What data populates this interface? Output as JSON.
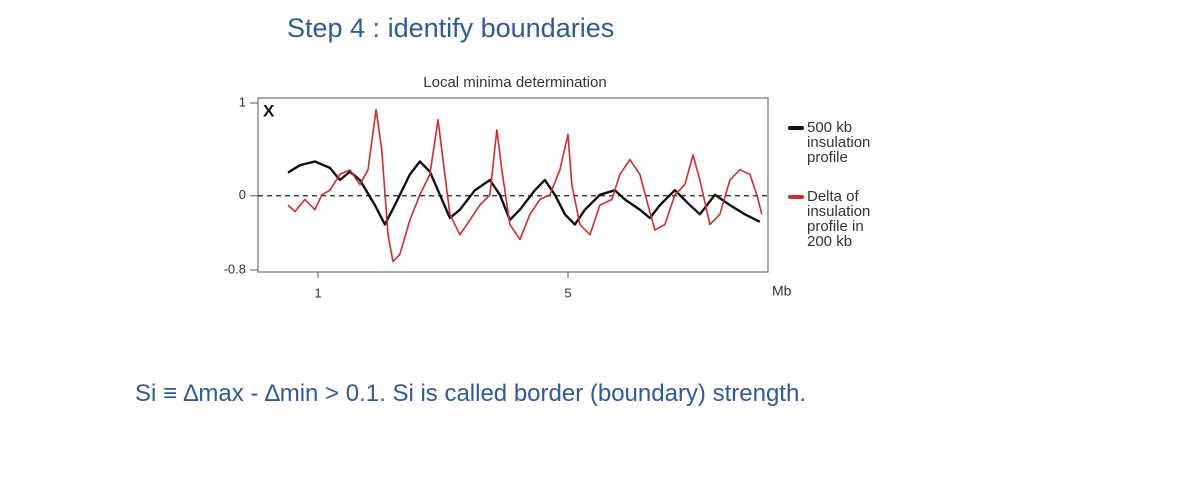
{
  "slide": {
    "title": "Step 4 : identify boundaries",
    "caption": "Si ≡ ∆max - ∆min > 0.1. Si is called border (boundary) strength."
  },
  "chart_data": {
    "type": "line",
    "title": "Local minima determination",
    "annotation": "X",
    "xlabel": "Mb",
    "xlim": [
      0,
      8.2
    ],
    "xticks": [
      1,
      5
    ],
    "ylim": [
      -0.8,
      1
    ],
    "yticks": [
      -0.8,
      0,
      1
    ],
    "reference_line": 0,
    "series": [
      {
        "name": "500 kb insulation profile",
        "color": "#111111",
        "x": [
          0.52,
          0.71,
          0.95,
          1.19,
          1.35,
          1.51,
          1.67,
          1.91,
          2.07,
          2.23,
          2.47,
          2.63,
          2.79,
          2.95,
          3.11,
          3.27,
          3.51,
          3.75,
          3.91,
          4.07,
          4.23,
          4.47,
          4.63,
          4.79,
          4.95,
          5.11,
          5.27,
          5.51,
          5.75,
          5.91,
          6.15,
          6.31,
          6.47,
          6.71,
          6.95,
          7.11,
          7.35,
          7.59,
          7.83,
          8.07
        ],
        "values": [
          0.25,
          0.33,
          0.37,
          0.3,
          0.17,
          0.26,
          0.17,
          -0.1,
          -0.31,
          -0.1,
          0.23,
          0.37,
          0.26,
          0.01,
          -0.24,
          -0.15,
          0.06,
          0.17,
          0.01,
          -0.26,
          -0.15,
          0.06,
          0.17,
          0.01,
          -0.2,
          -0.31,
          -0.15,
          0.01,
          0.06,
          -0.04,
          -0.15,
          -0.24,
          -0.1,
          0.06,
          -0.1,
          -0.2,
          0.01,
          -0.1,
          -0.2,
          -0.28
        ]
      },
      {
        "name": "Delta of insulation profile in 200 kb",
        "color": "#d42a2a",
        "x": [
          0.52,
          0.63,
          0.79,
          0.95,
          1.06,
          1.19,
          1.35,
          1.51,
          1.67,
          1.8,
          1.93,
          2.02,
          2.12,
          2.2,
          2.31,
          2.47,
          2.63,
          2.79,
          2.92,
          2.98,
          3.11,
          3.27,
          3.43,
          3.59,
          3.75,
          3.86,
          3.94,
          4.07,
          4.23,
          4.39,
          4.55,
          4.71,
          4.87,
          5.0,
          5.06,
          5.19,
          5.35,
          5.51,
          5.7,
          5.83,
          5.99,
          6.15,
          6.28,
          6.39,
          6.55,
          6.71,
          6.87,
          7.0,
          7.11,
          7.27,
          7.43,
          7.59,
          7.75,
          7.91,
          8.02,
          8.1
        ],
        "values": [
          -0.1,
          -0.17,
          -0.04,
          -0.15,
          0.01,
          0.06,
          0.23,
          0.28,
          0.12,
          0.28,
          0.93,
          0.49,
          -0.42,
          -0.71,
          -0.63,
          -0.26,
          0.01,
          0.23,
          0.82,
          0.49,
          -0.2,
          -0.42,
          -0.26,
          -0.1,
          0.01,
          0.71,
          0.28,
          -0.31,
          -0.47,
          -0.2,
          -0.04,
          0.01,
          0.28,
          0.66,
          0.12,
          -0.31,
          -0.42,
          -0.1,
          -0.04,
          0.23,
          0.39,
          0.23,
          -0.1,
          -0.37,
          -0.31,
          0.01,
          0.12,
          0.44,
          0.17,
          -0.31,
          -0.2,
          0.17,
          0.28,
          0.23,
          0.01,
          -0.2
        ]
      }
    ]
  }
}
